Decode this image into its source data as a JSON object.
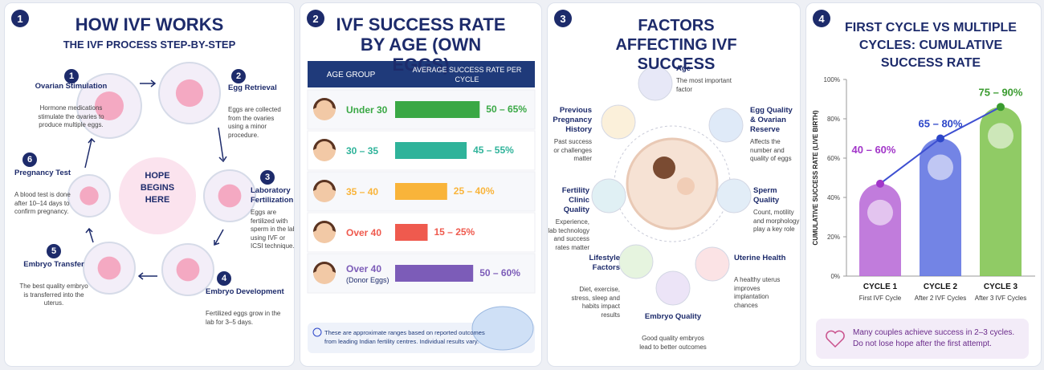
{
  "process": {
    "number": "1",
    "title": "HOW IVF WORKS",
    "subtitle": "THE IVF PROCESS STEP-BY-STEP",
    "center": "HOPE BEGINS HERE",
    "steps": [
      {
        "number": "1",
        "title": "Ovarian Stimulation",
        "text": "Hormone medications stimulate the ovaries to produce multiple eggs."
      },
      {
        "number": "2",
        "title": "Egg Retrieval",
        "text": "Eggs are collected from the ovaries using a minor procedure."
      },
      {
        "number": "3",
        "title": "Laboratory Fertilization",
        "text": "Eggs are fertilized with sperm in the lab using IVF or ICSI technique."
      },
      {
        "number": "4",
        "title": "Embryo Development",
        "text": "Fertilized eggs grow in the lab for 3–5 days."
      },
      {
        "number": "5",
        "title": "Embryo Transfer",
        "text": "The best quality embryo is transferred into the uterus."
      },
      {
        "number": "6",
        "title": "Pregnancy Test",
        "text": "A blood test is done after 10–14 days to confirm pregnancy."
      }
    ]
  },
  "chart_data": [
    {
      "type": "bar",
      "number": "2",
      "title": "IVF SUCCESS RATE BY AGE (OWN EGGS)",
      "columns": [
        "AGE GROUP",
        "AVERAGE SUCCESS RATE PER CYCLE"
      ],
      "categories": [
        "Under 30",
        "30 – 35",
        "35 – 40",
        "Over 40",
        "Over 40"
      ],
      "category_notes": [
        null,
        null,
        null,
        null,
        "(Donor Eggs)"
      ],
      "values": [
        65,
        55,
        40,
        25,
        60
      ],
      "value_labels": [
        "50 – 65%",
        "45 – 55%",
        "25 – 40%",
        "15 – 25%",
        "50 – 60%"
      ],
      "colors": [
        "#3aa845",
        "#2fb39a",
        "#f9b43a",
        "#ef5a4e",
        "#7c5cb8"
      ],
      "note": "These are approximate ranges based on reported outcomes from leading Indian fertility centres. Individual results vary."
    },
    {
      "type": "line",
      "number": "4",
      "title": "FIRST CYCLE VS MULTIPLE CYCLES: CUMULATIVE SUCCESS RATE",
      "ylabel": "CUMULATIVE SUCCESS RATE (LIVE BIRTH)",
      "categories": [
        "CYCLE 1",
        "CYCLE 2",
        "CYCLE 3"
      ],
      "sublabels": [
        "First IVF Cycle",
        "After 2 IVF Cycles",
        "After 3 IVF Cycles"
      ],
      "values": [
        47,
        70,
        86
      ],
      "value_labels": [
        "40 – 60%",
        "65 – 80%",
        "75 – 90%"
      ],
      "colors": [
        "#b665d6",
        "#5b6fe0",
        "#7cc24a"
      ],
      "label_colors": [
        "#a236c9",
        "#2c46c9",
        "#3a9b2f"
      ],
      "line_color": "#3d4fd1",
      "ylim": [
        0,
        100
      ],
      "yticks": [
        {
          "value": 0,
          "label": "0%"
        },
        {
          "value": 20,
          "label": "20%"
        },
        {
          "value": 40,
          "label": "40%"
        },
        {
          "value": 60,
          "label": "60%"
        },
        {
          "value": 80,
          "label": "80%"
        },
        {
          "value": 100,
          "label": "100%"
        }
      ],
      "note": "Many couples achieve success in 2–3 cycles. Do not lose hope after the first attempt."
    }
  ],
  "factors": {
    "number": "3",
    "title": "FACTORS AFFECTING IVF SUCCESS",
    "items": [
      {
        "title": "Age",
        "text": "The most important factor"
      },
      {
        "title": "Egg Quality & Ovarian Reserve",
        "text": "Affects the number and quality of eggs"
      },
      {
        "title": "Sperm Quality",
        "text": "Count, motility and morphology play a key role"
      },
      {
        "title": "Uterine Health",
        "text": "A healthy uterus improves implantation chances"
      },
      {
        "title": "Embryo Quality",
        "text": "Good quality embryos lead to better outcomes"
      },
      {
        "title": "Lifestyle Factors",
        "text": "Diet, exercise, stress, sleep and habits impact results"
      },
      {
        "title": "Fertility Clinic Quality",
        "text": "Experience, lab technology and success rates matter"
      },
      {
        "title": "Previous Pregnancy History",
        "text": "Past success or challenges matter"
      }
    ]
  }
}
